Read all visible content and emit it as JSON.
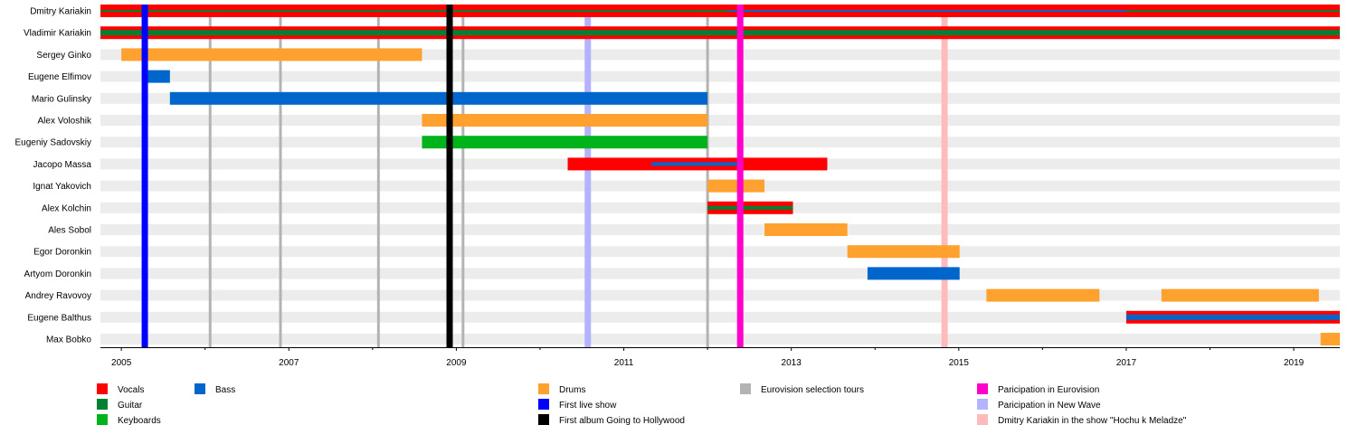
{
  "chart_data": {
    "type": "timeline",
    "title": "",
    "xlabel": "",
    "ylabel": "",
    "xlim": [
      2004.75,
      2019.55
    ],
    "tick_labels": [
      "2005",
      "2007",
      "2009",
      "2011",
      "2013",
      "2015",
      "2017",
      "2019"
    ],
    "minor_ticks": [
      2006,
      2008,
      2010,
      2012,
      2014,
      2016,
      2018
    ],
    "members": [
      "Dmitry Kariakin",
      "Vladimir Kariakin",
      "Sergey Ginko",
      "Eugene Elfimov",
      "Mario Gulinsky",
      "Alex Voloshik",
      "Eugeniy Sadovskiy",
      "Jacopo Massa",
      "Ignat Yakovich",
      "Alex Kolchin",
      "Ales Sobol",
      "Egor Doronkin",
      "Artyom Doronkin",
      "Andrey Ravovoy",
      "Eugene Balthus",
      "Max Bobko"
    ],
    "roles": {
      "Vocals": "#ff0000",
      "Guitar": "#008033",
      "Keyboards": "#00b31a",
      "Bass": "#0066cc",
      "Drums": "#ffa12e"
    },
    "bars": [
      {
        "member": 0,
        "role": "Vocals",
        "start": 2004.75,
        "end": 2019.55,
        "layer": "full"
      },
      {
        "member": 0,
        "role": "Guitar",
        "start": 2004.75,
        "end": 2019.55,
        "layer": "thin"
      },
      {
        "member": 0,
        "role": "Bass",
        "start": 2012.25,
        "end": 2017.0,
        "layer": "thin"
      },
      {
        "member": 1,
        "role": "Vocals",
        "start": 2004.75,
        "end": 2019.55,
        "layer": "full"
      },
      {
        "member": 1,
        "role": "Guitar",
        "start": 2004.75,
        "end": 2019.55,
        "layer": "wide"
      },
      {
        "member": 2,
        "role": "Drums",
        "start": 2005.0,
        "end": 2008.59,
        "layer": "full"
      },
      {
        "member": 3,
        "role": "Bass",
        "start": 2005.28,
        "end": 2005.58,
        "layer": "full"
      },
      {
        "member": 4,
        "role": "Bass",
        "start": 2005.58,
        "end": 2012.0,
        "layer": "full"
      },
      {
        "member": 5,
        "role": "Drums",
        "start": 2008.59,
        "end": 2012.0,
        "layer": "full"
      },
      {
        "member": 6,
        "role": "Keyboards",
        "start": 2008.59,
        "end": 2012.0,
        "layer": "full"
      },
      {
        "member": 7,
        "role": "Vocals",
        "start": 2010.33,
        "end": 2013.43,
        "layer": "full"
      },
      {
        "member": 7,
        "role": "Bass",
        "start": 2011.33,
        "end": 2012.36,
        "layer": "medium"
      },
      {
        "member": 8,
        "role": "Drums",
        "start": 2012.0,
        "end": 2012.68,
        "layer": "full"
      },
      {
        "member": 9,
        "role": "Vocals",
        "start": 2012.0,
        "end": 2013.02,
        "layer": "full"
      },
      {
        "member": 9,
        "role": "Guitar",
        "start": 2012.0,
        "end": 2013.02,
        "layer": "medium"
      },
      {
        "member": 10,
        "role": "Drums",
        "start": 2012.68,
        "end": 2013.67,
        "layer": "full"
      },
      {
        "member": 11,
        "role": "Drums",
        "start": 2013.67,
        "end": 2015.01,
        "layer": "full"
      },
      {
        "member": 12,
        "role": "Bass",
        "start": 2013.91,
        "end": 2015.01,
        "layer": "full"
      },
      {
        "member": 13,
        "role": "Drums",
        "start": 2015.33,
        "end": 2016.68,
        "layer": "full"
      },
      {
        "member": 13,
        "role": "Drums",
        "start": 2017.42,
        "end": 2019.3,
        "layer": "full"
      },
      {
        "member": 14,
        "role": "Vocals",
        "start": 2017.0,
        "end": 2019.55,
        "layer": "full"
      },
      {
        "member": 14,
        "role": "Bass",
        "start": 2017.0,
        "end": 2019.55,
        "layer": "wide"
      },
      {
        "member": 15,
        "role": "Drums",
        "start": 2019.32,
        "end": 2019.55,
        "layer": "full"
      }
    ],
    "events": [
      {
        "type": "Eurovision selection tours",
        "year": 2006.06
      },
      {
        "type": "Eurovision selection tours",
        "year": 2006.9
      },
      {
        "type": "Eurovision selection tours",
        "year": 2008.07
      },
      {
        "type": "Eurovision selection tours",
        "year": 2009.08
      },
      {
        "type": "Eurovision selection tours",
        "year": 2012.0
      },
      {
        "type": "Participation in New Wave",
        "year": 2010.57
      },
      {
        "type": "Dmitry Kariakin in the show \"Hochu k Meladze\"",
        "year": 2014.83
      },
      {
        "type": "First live show",
        "year": 2005.28
      },
      {
        "type": "First album Going to Hollywood",
        "year": 2008.92
      },
      {
        "type": "Paricipation in Eurovision",
        "year": 2012.39
      }
    ],
    "event_colors": {
      "First live show": "#0000ff",
      "First album Going to Hollywood": "#000000",
      "Eurovision selection tours": "#b3b3b3",
      "Paricipation in Eurovision": "#ff00cc",
      "Participation in New Wave": "#b3b3ff",
      "Dmitry Kariakin in the show \"Hochu k Meladze\"": "#ffbbbb"
    },
    "legend": {
      "placement": "bottom",
      "entries": [
        {
          "label": "Vocals",
          "color": "#ff0000",
          "col": 0,
          "row": 0
        },
        {
          "label": "Guitar",
          "color": "#008033",
          "col": 0,
          "row": 1
        },
        {
          "label": "Keyboards",
          "color": "#00b31a",
          "col": 0,
          "row": 2
        },
        {
          "label": "Bass",
          "color": "#0066cc",
          "col": 1,
          "row": 0
        },
        {
          "label": "Drums",
          "color": "#ffa12e",
          "col": 2,
          "row": 0
        },
        {
          "label": "First live show",
          "color": "#0000ff",
          "col": 2,
          "row": 1
        },
        {
          "label": "First album Going to Hollywood",
          "color": "#000000",
          "col": 2,
          "row": 2
        },
        {
          "label": "Eurovision selection tours",
          "color": "#b3b3b3",
          "col": 3,
          "row": 0
        },
        {
          "label": "Paricipation in Eurovision",
          "color": "#ff00cc",
          "col": 4,
          "row": 0
        },
        {
          "label": "Paricipation in New Wave",
          "color": "#b3b3ff",
          "col": 4,
          "row": 1
        },
        {
          "label": "Dmitry Kariakin in the show \"Hochu k Meladze\"",
          "color": "#ffbbbb",
          "col": 4,
          "row": 2
        }
      ]
    }
  }
}
